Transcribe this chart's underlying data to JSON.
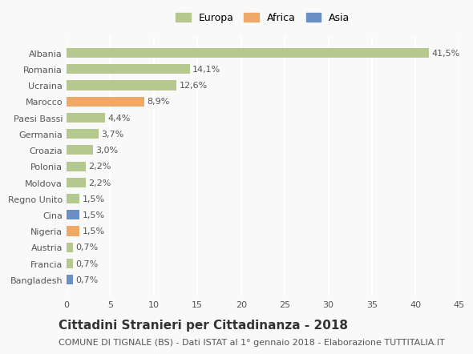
{
  "categories": [
    "Albania",
    "Romania",
    "Ucraina",
    "Marocco",
    "Paesi Bassi",
    "Germania",
    "Croazia",
    "Polonia",
    "Moldova",
    "Regno Unito",
    "Cina",
    "Nigeria",
    "Austria",
    "Francia",
    "Bangladesh"
  ],
  "values": [
    41.5,
    14.1,
    12.6,
    8.9,
    4.4,
    3.7,
    3.0,
    2.2,
    2.2,
    1.5,
    1.5,
    1.5,
    0.7,
    0.7,
    0.7
  ],
  "labels": [
    "41,5%",
    "14,1%",
    "12,6%",
    "8,9%",
    "4,4%",
    "3,7%",
    "3,0%",
    "2,2%",
    "2,2%",
    "1,5%",
    "1,5%",
    "1,5%",
    "0,7%",
    "0,7%",
    "0,7%"
  ],
  "continent": [
    "Europa",
    "Europa",
    "Europa",
    "Africa",
    "Europa",
    "Europa",
    "Europa",
    "Europa",
    "Europa",
    "Europa",
    "Asia",
    "Africa",
    "Europa",
    "Europa",
    "Asia"
  ],
  "colors": {
    "Europa": "#b5c98e",
    "Africa": "#f0a868",
    "Asia": "#6b8ec4"
  },
  "legend_colors": {
    "Europa": "#b5c98e",
    "Africa": "#f0a868",
    "Asia": "#6b8ec4"
  },
  "xlim": [
    0,
    45
  ],
  "xticks": [
    0,
    5,
    10,
    15,
    20,
    25,
    30,
    35,
    40,
    45
  ],
  "title": "Cittadini Stranieri per Cittadinanza - 2018",
  "subtitle": "COMUNE DI TIGNALE (BS) - Dati ISTAT al 1° gennaio 2018 - Elaborazione TUTTITALIA.IT",
  "background_color": "#f9f9f9",
  "grid_color": "#ffffff",
  "bar_height": 0.6,
  "title_fontsize": 11,
  "subtitle_fontsize": 8,
  "label_fontsize": 8,
  "tick_fontsize": 8
}
